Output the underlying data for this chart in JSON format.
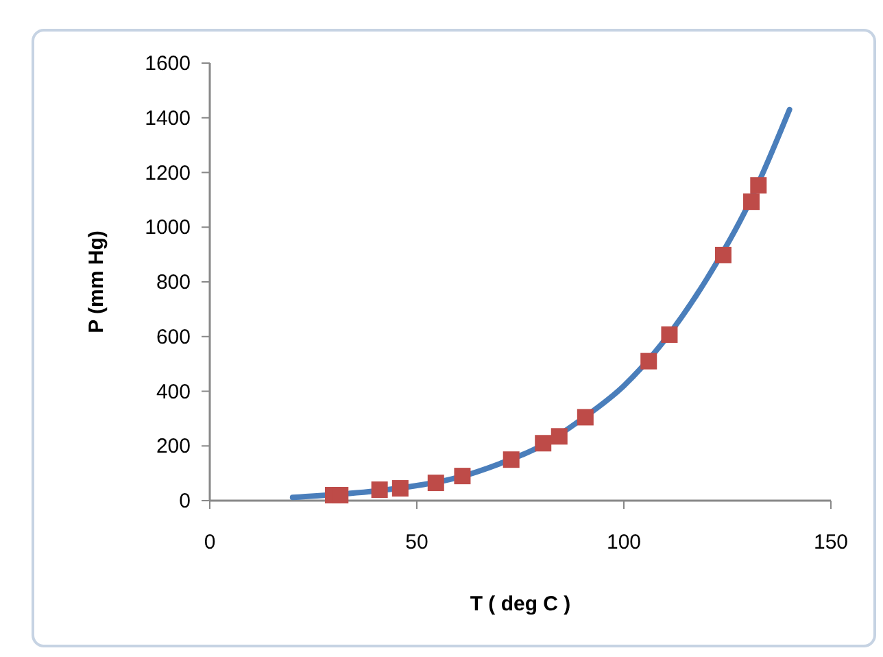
{
  "chart_data": {
    "type": "scatter",
    "xlabel": "T ( deg C )",
    "ylabel": "P (mm Hg)",
    "xlim": [
      0,
      150
    ],
    "xticks": [
      0,
      50,
      100,
      150
    ],
    "ylim": [
      0,
      1600
    ],
    "yticks": [
      0,
      200,
      400,
      600,
      800,
      1000,
      1200,
      1400,
      1600
    ],
    "grid": false,
    "series": [
      {
        "type": "line",
        "color": "#4a7ebb",
        "marker": "none",
        "x": [
          20,
          30,
          40,
          50,
          60,
          70,
          80,
          90,
          100,
          110,
          120,
          130,
          140
        ],
        "values": [
          12,
          22,
          35,
          55,
          85,
          135,
          200,
          300,
          420,
          590,
          810,
          1080,
          1430
        ]
      },
      {
        "color": "#be4b48",
        "marker": "square",
        "x": [
          29.8,
          31.5,
          41,
          46,
          54.6,
          61,
          72.8,
          80.5,
          84.4,
          90.7,
          106,
          111,
          124,
          130.8,
          132.5
        ],
        "values": [
          20,
          20,
          40,
          45,
          65,
          90,
          150,
          210,
          235,
          305,
          510,
          607,
          898,
          1093,
          1153
        ]
      }
    ]
  }
}
